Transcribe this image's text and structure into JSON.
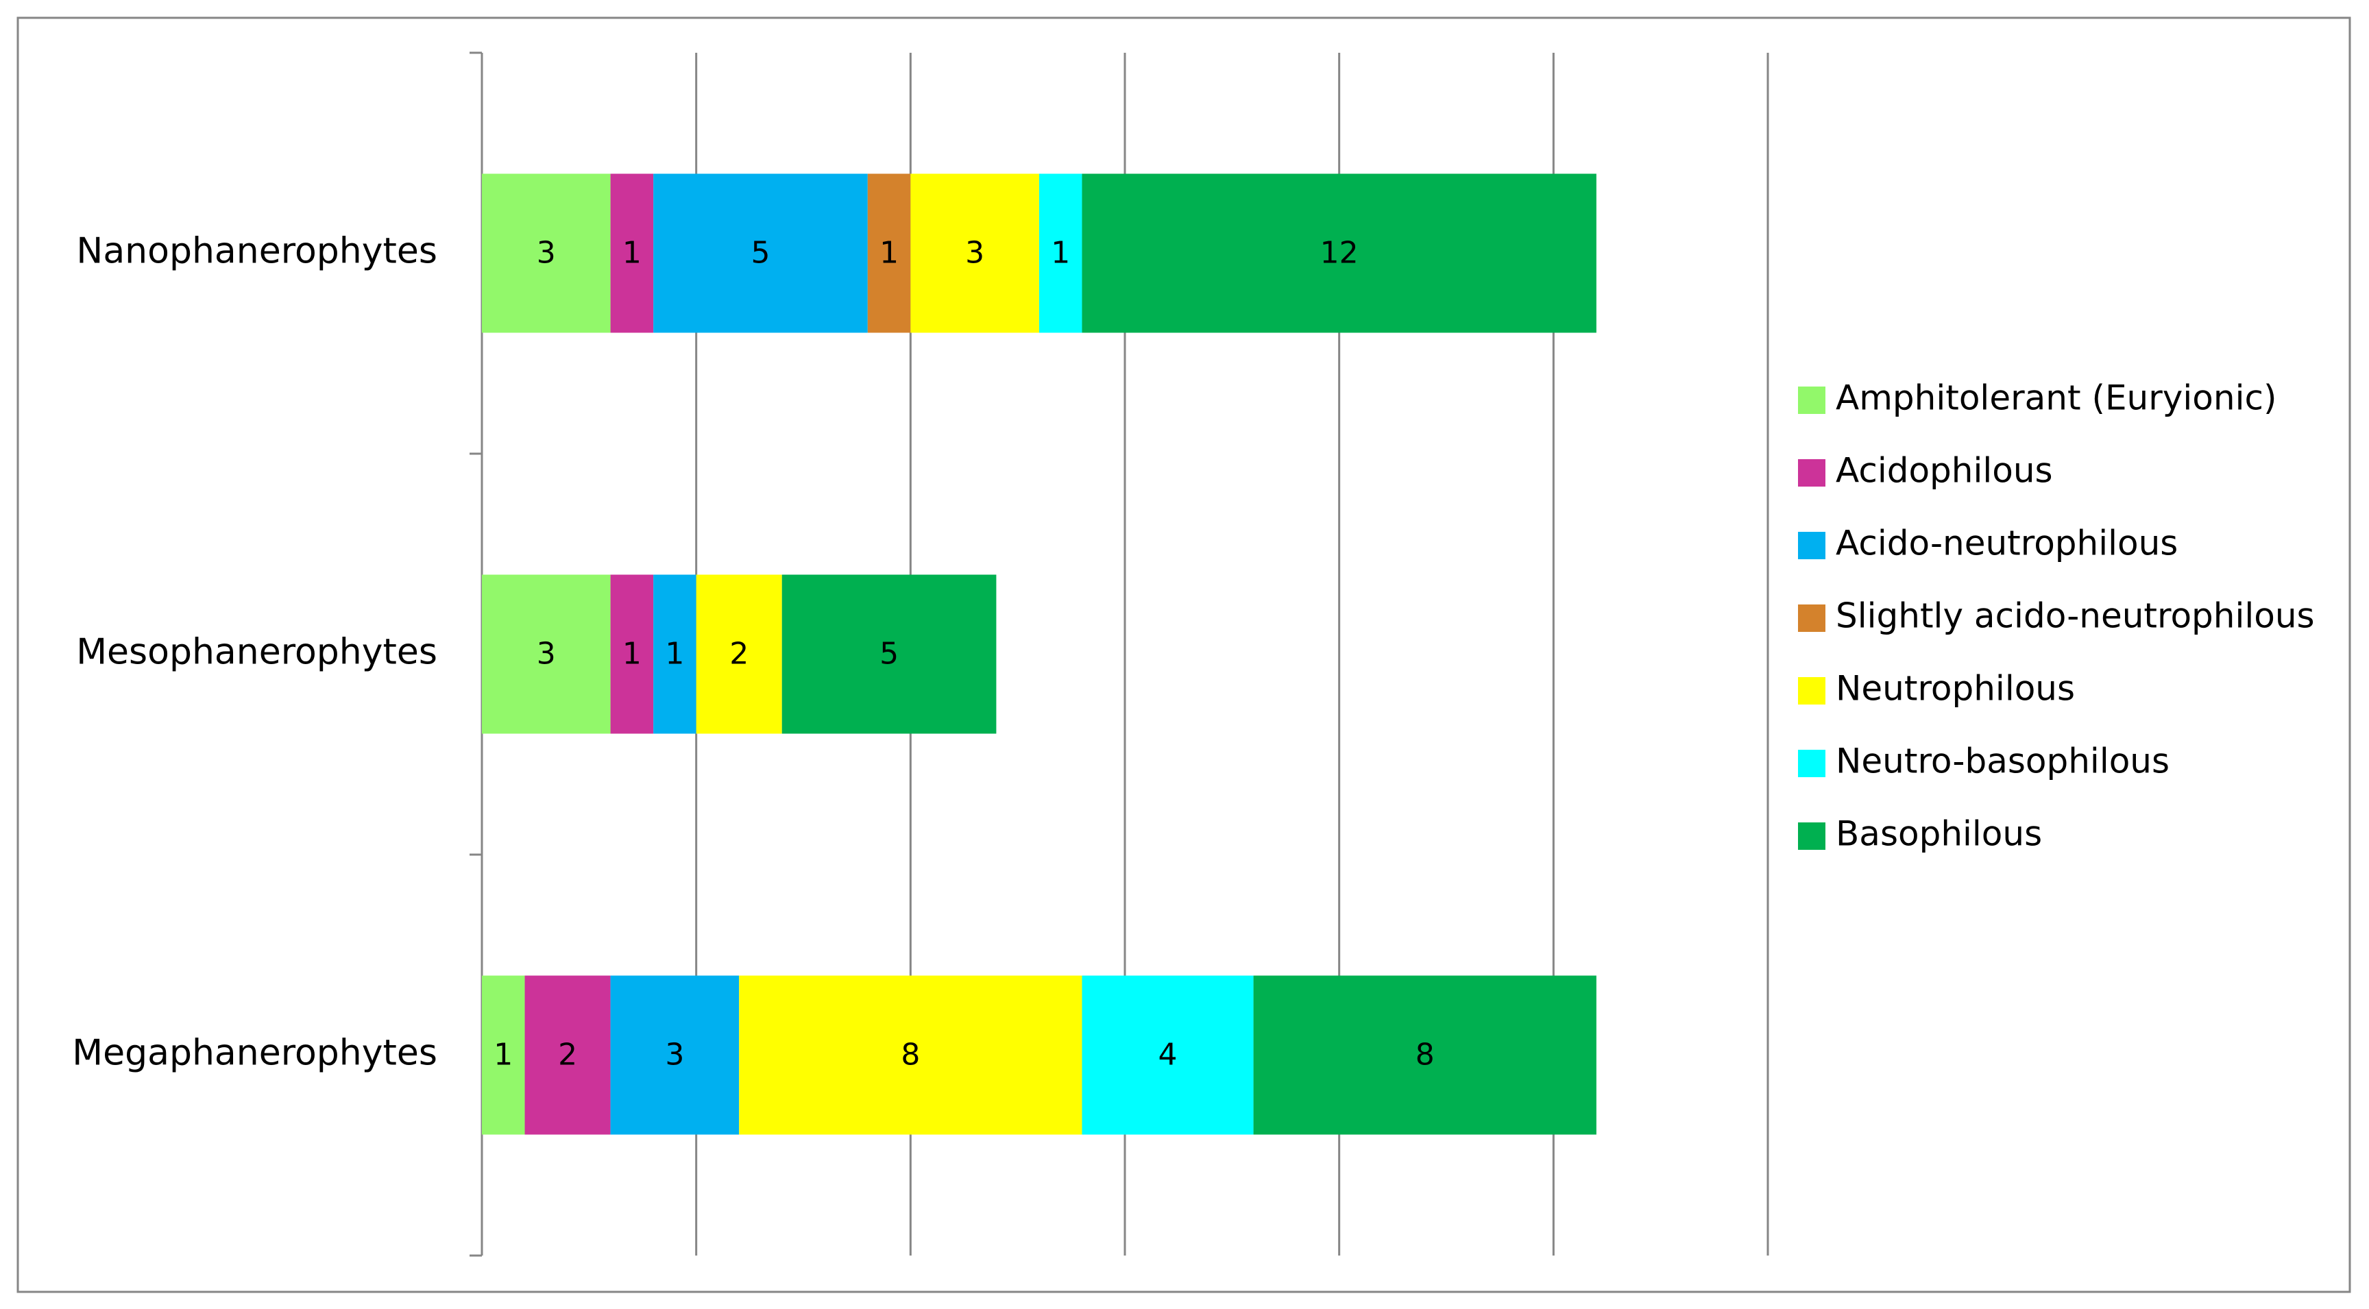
{
  "chart_data": {
    "type": "bar",
    "orientation": "horizontal",
    "stacked": true,
    "categories": [
      "Nanophanerophytes",
      "Mesophanerophytes",
      "Megaphanerophytes"
    ],
    "series": [
      {
        "name": "Amphitolerant (Euryionic)",
        "color": "#92f86a",
        "values": [
          3,
          3,
          1
        ]
      },
      {
        "name": "Acidophilous",
        "color": "#cc3399",
        "values": [
          1,
          1,
          2
        ]
      },
      {
        "name": "Acido-neutrophilous",
        "color": "#00b0f0",
        "values": [
          5,
          1,
          3
        ]
      },
      {
        "name": "Slightly acido-neutrophilous",
        "color": "#d4822c",
        "values": [
          1,
          0,
          0
        ]
      },
      {
        "name": "Neutrophilous",
        "color": "#ffff00",
        "values": [
          3,
          2,
          8
        ]
      },
      {
        "name": "Neutro-basophilous",
        "color": "#00ffff",
        "values": [
          1,
          0,
          4
        ]
      },
      {
        "name": "Basophilous",
        "color": "#00b050",
        "values": [
          12,
          5,
          8
        ]
      }
    ],
    "xlim": [
      0,
      30
    ],
    "xticks": [
      0,
      5,
      10,
      15,
      20,
      25,
      30
    ],
    "grid": true,
    "legend": "right"
  }
}
